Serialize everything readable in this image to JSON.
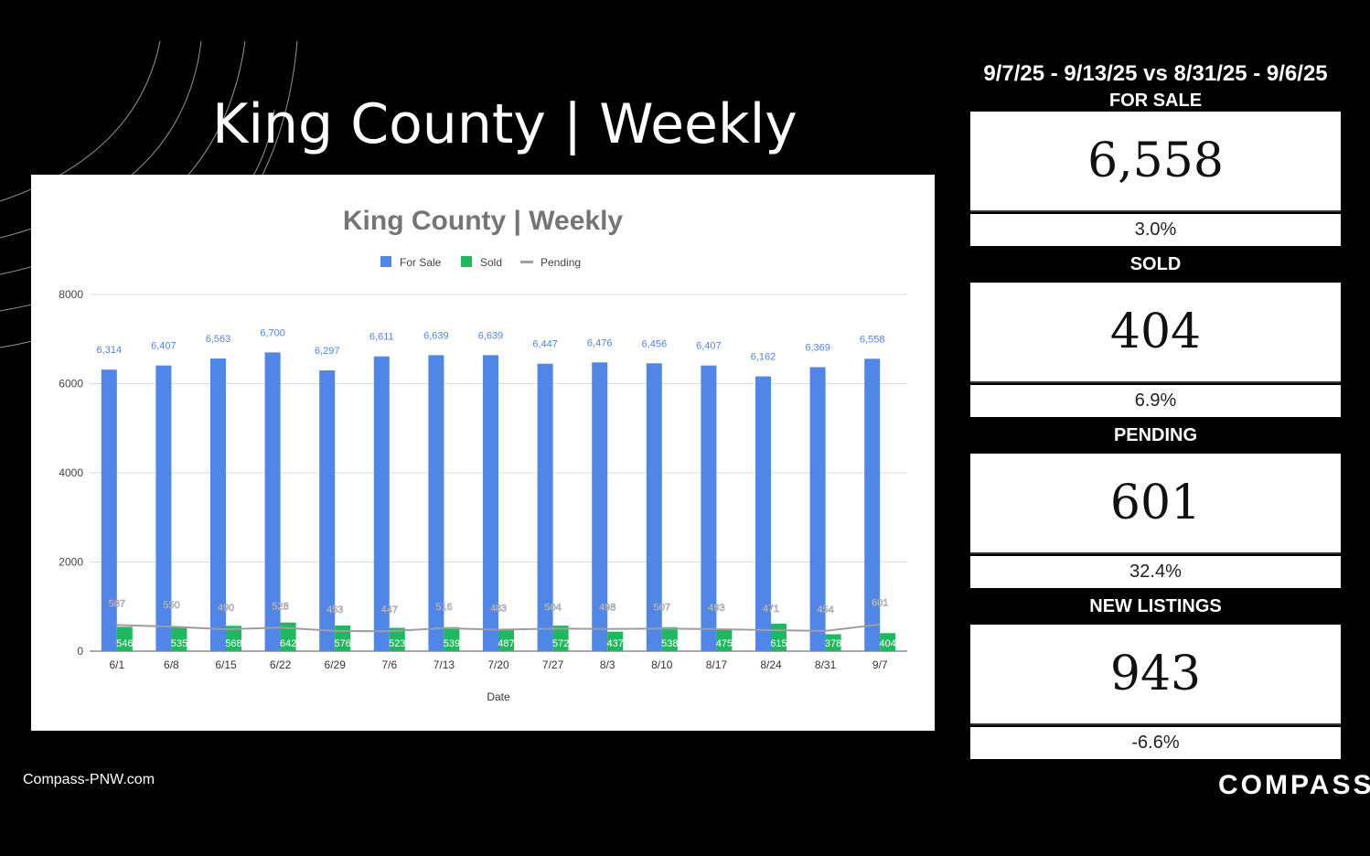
{
  "slide": {
    "title": "King County | Weekly",
    "website": "Compass-PNW.com",
    "brand": "COMPASS"
  },
  "panel": {
    "date_range": "9/7/25 - 9/13/25 vs 8/31/25 - 9/6/25",
    "stats": [
      {
        "label": "FOR SALE",
        "value": "6,558",
        "change": "3.0%"
      },
      {
        "label": "SOLD",
        "value": "404",
        "change": "6.9%"
      },
      {
        "label": "PENDING",
        "value": "601",
        "change": "32.4%"
      },
      {
        "label": "NEW LISTINGS",
        "value": "943",
        "change": "-6.6%"
      }
    ]
  },
  "colors": {
    "for_sale": "#4f86e8",
    "sold": "#1fb85e",
    "pending": "#9e9e9e",
    "title_gray": "#757575"
  },
  "chart_data": {
    "type": "bar",
    "title": "King County | Weekly",
    "xlabel": "Date",
    "ylabel": "",
    "ylim": [
      0,
      8000
    ],
    "yticks": [
      0,
      2000,
      4000,
      6000,
      8000
    ],
    "grid": true,
    "legend_position": "top",
    "categories": [
      "6/1",
      "6/8",
      "6/15",
      "6/22",
      "6/29",
      "7/6",
      "7/13",
      "7/20",
      "7/27",
      "8/3",
      "8/10",
      "8/17",
      "8/24",
      "8/31",
      "9/7"
    ],
    "series": [
      {
        "name": "For Sale",
        "kind": "bar",
        "values": [
          6314,
          6407,
          6563,
          6700,
          6297,
          6611,
          6639,
          6639,
          6447,
          6476,
          6456,
          6407,
          6162,
          6369,
          6558
        ],
        "labels": [
          "6,314",
          "6,407",
          "6,563",
          "6,700",
          "6,297",
          "6,611",
          "6,639",
          "6,639",
          "6,447",
          "6,476",
          "6,456",
          "6,407",
          "6,162",
          "6,369",
          "6,558"
        ]
      },
      {
        "name": "Sold",
        "kind": "bar",
        "values": [
          546,
          535,
          568,
          642,
          576,
          523,
          539,
          487,
          572,
          437,
          538,
          475,
          615,
          378,
          404
        ],
        "labels": [
          "546",
          "535",
          "568",
          "642",
          "576",
          "523",
          "539",
          "487",
          "572",
          "437",
          "538",
          "475",
          "615",
          "378",
          "404"
        ]
      },
      {
        "name": "Pending",
        "kind": "line",
        "values": [
          587,
          550,
          490,
          528,
          453,
          447,
          516,
          483,
          504,
          498,
          507,
          493,
          471,
          454,
          601
        ],
        "labels": [
          "587",
          "550",
          "490",
          "528",
          "453",
          "447",
          "516",
          "483",
          "504",
          "498",
          "507",
          "493",
          "471",
          "454",
          "601"
        ]
      }
    ]
  }
}
